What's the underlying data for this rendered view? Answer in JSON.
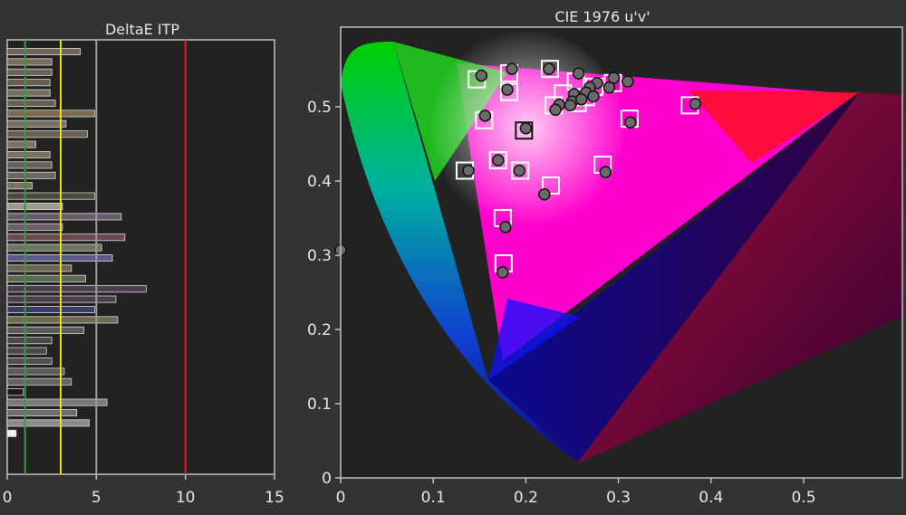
{
  "colors": {
    "background": "#333333",
    "plot_background": "#222222",
    "axis": "#bfbfbf",
    "text": "#e6e6e6",
    "threshold_green": "#3a9a3a",
    "threshold_yellow": "#f0e000",
    "threshold_gray": "#9a9a9a",
    "threshold_red": "#e02020"
  },
  "chart_data": [
    {
      "type": "bar",
      "orientation": "horizontal",
      "title": "DeltaE ITP",
      "xlim": [
        0,
        15
      ],
      "x_ticks": [
        "0",
        "5",
        "10",
        "15"
      ],
      "reference_lines": [
        1,
        3,
        5,
        10
      ],
      "grid": false,
      "values": [
        4.1,
        2.5,
        2.5,
        2.4,
        2.4,
        2.7,
        4.9,
        3.3,
        4.5,
        1.6,
        2.4,
        2.5,
        2.7,
        1.4,
        4.9,
        3.1,
        6.4,
        3.1,
        6.6,
        5.3,
        5.9,
        3.6,
        4.4,
        7.8,
        6.1,
        4.9,
        6.2,
        4.3,
        2.5,
        2.2,
        2.5,
        3.2,
        3.6,
        0.9,
        5.6,
        3.9,
        4.6,
        0.5
      ],
      "bar_colors": [
        "#6e645c",
        "#786e60",
        "#6c6458",
        "#6a6052",
        "#747060",
        "#6a5e52",
        "#7a6a50",
        "#786e64",
        "#6c6056",
        "#7c7064",
        "#7c7262",
        "#6a6056",
        "#6c6660",
        "#7c7262",
        "#4c4a3c",
        "#9c9a90",
        "#6a5c68",
        "#6c6068",
        "#6a4a4e",
        "#6e7462",
        "#5a5a8a",
        "#6c6454",
        "#5c6a52",
        "#4e3e52",
        "#4a3e4c",
        "#3c3c6a",
        "#6e6a50",
        "#5a5a58",
        "#4a4a4a",
        "#484848",
        "#505050",
        "#5a5a5a",
        "#646464",
        "#1a1a1a",
        "#7a7a7a",
        "#6e6e6e",
        "#8a8a8a",
        "#f0f0f0"
      ]
    },
    {
      "type": "scatter",
      "title": "CIE 1976 u'v'",
      "xlabel": "",
      "ylabel": "",
      "xlim": [
        0,
        0.6
      ],
      "ylim": [
        0,
        0.6
      ],
      "x_ticks": [
        "0",
        "0.1",
        "0.2",
        "0.3",
        "0.4",
        "0.5"
      ],
      "y_ticks": [
        "0",
        "0.1",
        "0.2",
        "0.3",
        "0.4",
        "0.5"
      ],
      "grid": false,
      "gamut_triangle": [
        [
          0.556,
          0.517
        ],
        [
          0.125,
          0.559
        ],
        [
          0.175,
          0.158
        ]
      ],
      "white_point": [
        0.198,
        0.468
      ],
      "targets": [
        [
          0.147,
          0.537
        ],
        [
          0.182,
          0.545
        ],
        [
          0.226,
          0.551
        ],
        [
          0.182,
          0.52
        ],
        [
          0.254,
          0.534
        ],
        [
          0.274,
          0.527
        ],
        [
          0.294,
          0.532
        ],
        [
          0.24,
          0.518
        ],
        [
          0.265,
          0.513
        ],
        [
          0.23,
          0.502
        ],
        [
          0.256,
          0.505
        ],
        [
          0.155,
          0.482
        ],
        [
          0.312,
          0.484
        ],
        [
          0.377,
          0.502
        ],
        [
          0.134,
          0.414
        ],
        [
          0.17,
          0.428
        ],
        [
          0.194,
          0.414
        ],
        [
          0.283,
          0.422
        ],
        [
          0.227,
          0.394
        ],
        [
          0.175,
          0.35
        ],
        [
          0.176,
          0.289
        ]
      ],
      "measured": [
        [
          0.152,
          0.542
        ],
        [
          0.185,
          0.551
        ],
        [
          0.225,
          0.551
        ],
        [
          0.257,
          0.545
        ],
        [
          0.295,
          0.539
        ],
        [
          0.18,
          0.523
        ],
        [
          0.277,
          0.532
        ],
        [
          0.31,
          0.534
        ],
        [
          0.269,
          0.526
        ],
        [
          0.29,
          0.526
        ],
        [
          0.252,
          0.517
        ],
        [
          0.265,
          0.519
        ],
        [
          0.25,
          0.507
        ],
        [
          0.26,
          0.51
        ],
        [
          0.273,
          0.514
        ],
        [
          0.236,
          0.503
        ],
        [
          0.232,
          0.496
        ],
        [
          0.248,
          0.502
        ],
        [
          0.383,
          0.504
        ],
        [
          0.156,
          0.488
        ],
        [
          0.313,
          0.479
        ],
        [
          0.2,
          0.471
        ],
        [
          0.138,
          0.414
        ],
        [
          0.17,
          0.428
        ],
        [
          0.193,
          0.414
        ],
        [
          0.286,
          0.412
        ],
        [
          0.22,
          0.382
        ],
        [
          0.178,
          0.338
        ],
        [
          0.175,
          0.277
        ],
        [
          0.0,
          0.307
        ]
      ]
    }
  ]
}
